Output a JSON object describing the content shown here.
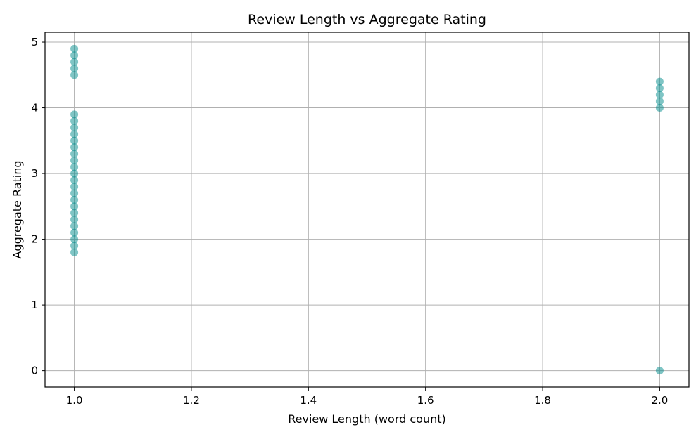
{
  "chart_data": {
    "type": "scatter",
    "title": "Review Length vs Aggregate Rating",
    "xlabel": "Review Length (word count)",
    "ylabel": "Aggregate Rating",
    "xlim": [
      0.95,
      2.05
    ],
    "ylim": [
      -0.25,
      5.15
    ],
    "x_ticks": [
      1.0,
      1.2,
      1.4,
      1.6,
      1.8,
      2.0
    ],
    "x_tick_labels": [
      "1.0",
      "1.2",
      "1.4",
      "1.6",
      "1.8",
      "2.0"
    ],
    "y_ticks": [
      0,
      1,
      2,
      3,
      4,
      5
    ],
    "y_tick_labels": [
      "0",
      "1",
      "2",
      "3",
      "4",
      "5"
    ],
    "grid": true,
    "marker_color": "#008b8b",
    "marker_alpha": 0.5,
    "series": [
      {
        "points": [
          {
            "x": 1.0,
            "y": 1.8
          },
          {
            "x": 1.0,
            "y": 1.9
          },
          {
            "x": 1.0,
            "y": 2.0
          },
          {
            "x": 1.0,
            "y": 2.1
          },
          {
            "x": 1.0,
            "y": 2.2
          },
          {
            "x": 1.0,
            "y": 2.3
          },
          {
            "x": 1.0,
            "y": 2.4
          },
          {
            "x": 1.0,
            "y": 2.5
          },
          {
            "x": 1.0,
            "y": 2.6
          },
          {
            "x": 1.0,
            "y": 2.7
          },
          {
            "x": 1.0,
            "y": 2.8
          },
          {
            "x": 1.0,
            "y": 2.9
          },
          {
            "x": 1.0,
            "y": 3.0
          },
          {
            "x": 1.0,
            "y": 3.1
          },
          {
            "x": 1.0,
            "y": 3.2
          },
          {
            "x": 1.0,
            "y": 3.3
          },
          {
            "x": 1.0,
            "y": 3.4
          },
          {
            "x": 1.0,
            "y": 3.5
          },
          {
            "x": 1.0,
            "y": 3.6
          },
          {
            "x": 1.0,
            "y": 3.7
          },
          {
            "x": 1.0,
            "y": 3.8
          },
          {
            "x": 1.0,
            "y": 3.9
          },
          {
            "x": 1.0,
            "y": 4.5
          },
          {
            "x": 1.0,
            "y": 4.6
          },
          {
            "x": 1.0,
            "y": 4.7
          },
          {
            "x": 1.0,
            "y": 4.8
          },
          {
            "x": 1.0,
            "y": 4.9
          },
          {
            "x": 2.0,
            "y": 0.0
          },
          {
            "x": 2.0,
            "y": 4.0
          },
          {
            "x": 2.0,
            "y": 4.1
          },
          {
            "x": 2.0,
            "y": 4.2
          },
          {
            "x": 2.0,
            "y": 4.3
          },
          {
            "x": 2.0,
            "y": 4.4
          }
        ]
      }
    ]
  }
}
